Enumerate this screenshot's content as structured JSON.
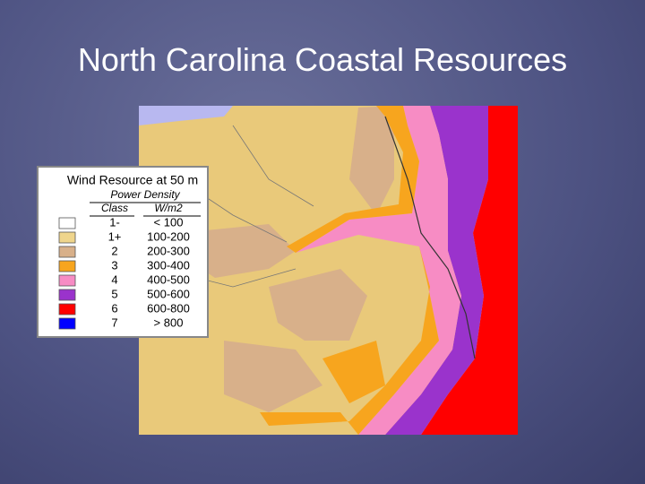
{
  "title": "North Carolina Coastal Resources",
  "legend": {
    "title": "Wind Resource at 50 m",
    "subtitle": "Power Density",
    "headers": [
      "Class",
      "W/m2"
    ],
    "rows": [
      {
        "class": "1-",
        "range": "< 100",
        "color": "#ffffff"
      },
      {
        "class": "1+",
        "range": "100-200",
        "color": "#efd58c"
      },
      {
        "class": "2",
        "range": "200-300",
        "color": "#d8b08a"
      },
      {
        "class": "3",
        "range": "300-400",
        "color": "#f7a51e"
      },
      {
        "class": "4",
        "range": "400-500",
        "color": "#f78cc4"
      },
      {
        "class": "5",
        "range": "500-600",
        "color": "#9a33cc"
      },
      {
        "class": "6",
        "range": "600-800",
        "color": "#ff0000"
      },
      {
        "class": "7",
        "range": "> 800",
        "color": "#0000ff"
      }
    ]
  }
}
